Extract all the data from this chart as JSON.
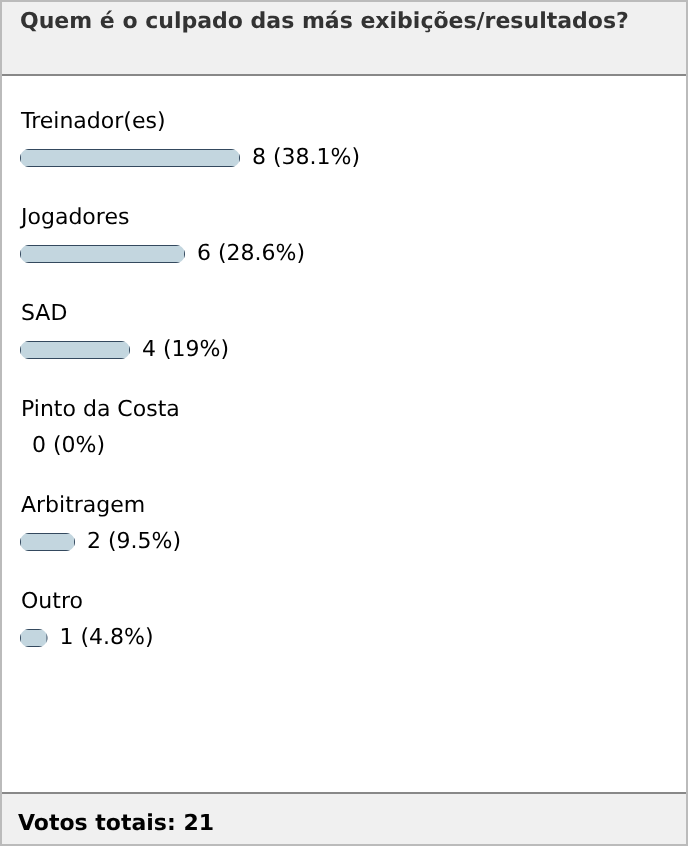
{
  "chart_data": {
    "type": "bar",
    "orientation": "horizontal",
    "title": "Quem é o culpado das más exibições/resultados?",
    "categories": [
      "Treinador(es)",
      "Jogadores",
      "SAD",
      "Pinto da Costa",
      "Arbitragem",
      "Outro"
    ],
    "values": [
      8,
      6,
      4,
      0,
      2,
      1
    ],
    "value_labels": [
      "8 (38.1%)",
      "6 (28.6%)",
      "4 (19%)",
      "0 (0%)",
      "2 (9.5%)",
      "1 (4.8%)"
    ],
    "color": "#c3d6df",
    "annotations": [
      "Votos totais: 21"
    ]
  }
}
